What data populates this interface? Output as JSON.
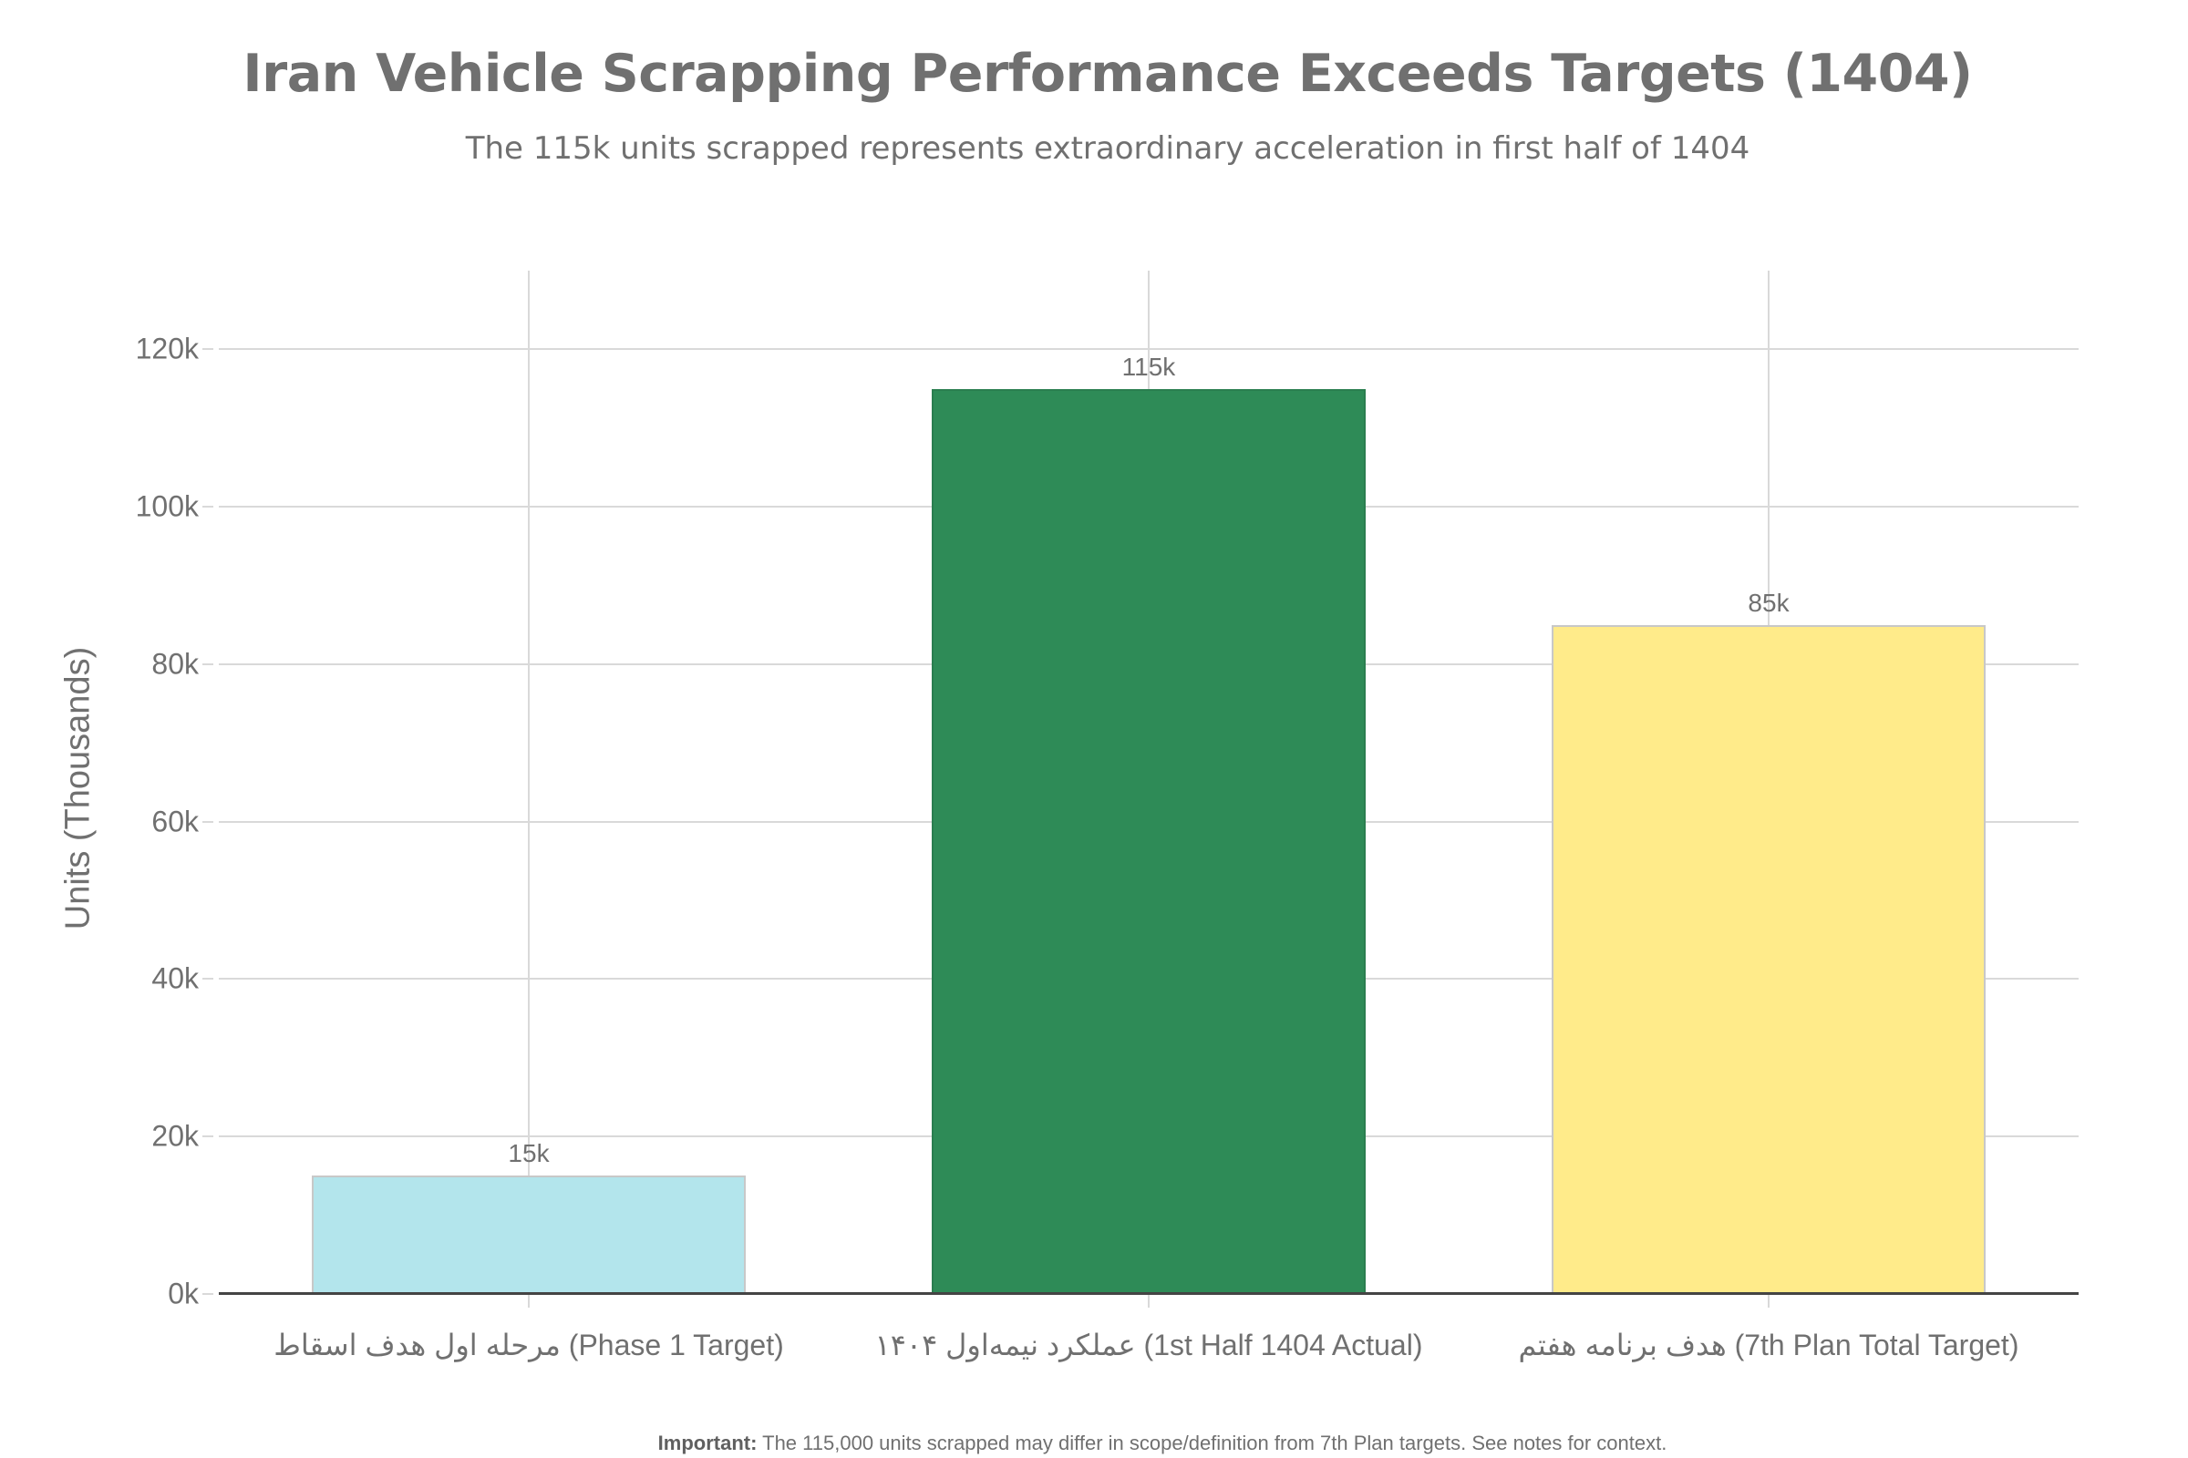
{
  "header": {
    "title": "Iran Vehicle Scrapping Performance Exceeds Targets (1404)",
    "subtitle": "The 115k units scrapped represents extraordinary acceleration in first half of 1404"
  },
  "footer": {
    "label": "Important:",
    "text": " The 115,000 units scrapped may differ in scope/definition from 7th Plan targets. See notes for context."
  },
  "colors": {
    "text": "#707070",
    "grid": "#d9d9d9",
    "bar_border": "#c8c8c8",
    "phase1": "#B3E5EC",
    "actual": "#2E8B57",
    "plan": "#FFEB8A"
  },
  "chart_data": {
    "type": "bar",
    "title": "Iran Vehicle Scrapping Performance Exceeds Targets (1404)",
    "subtitle": "The 115k units scrapped represents extraordinary acceleration in first half of 1404",
    "categories": [
      "مرحله اول هدف اسقاط (Phase 1 Target)",
      "عملکرد نیمه‌اول ۱۴۰۴ (1st Half 1404 Actual)",
      "هدف برنامه هفتم (7th Plan Total Target)"
    ],
    "values": [
      15,
      115,
      85
    ],
    "value_labels": [
      "15k",
      "115k",
      "85k"
    ],
    "bar_colors": [
      "#B3E5EC",
      "#2E8B57",
      "#FFEB8A"
    ],
    "xlabel": "",
    "ylabel": "Units (Thousands)",
    "ylim": [
      0,
      130
    ],
    "yticks": [
      0,
      20,
      40,
      60,
      80,
      100,
      120
    ],
    "ytick_labels": [
      "0k",
      "20k",
      "40k",
      "60k",
      "80k",
      "100k",
      "120k"
    ],
    "grid": true,
    "legend": null,
    "annotation": "Important: The 115,000 units scrapped may differ in scope/definition from 7th Plan targets. See notes for context."
  }
}
